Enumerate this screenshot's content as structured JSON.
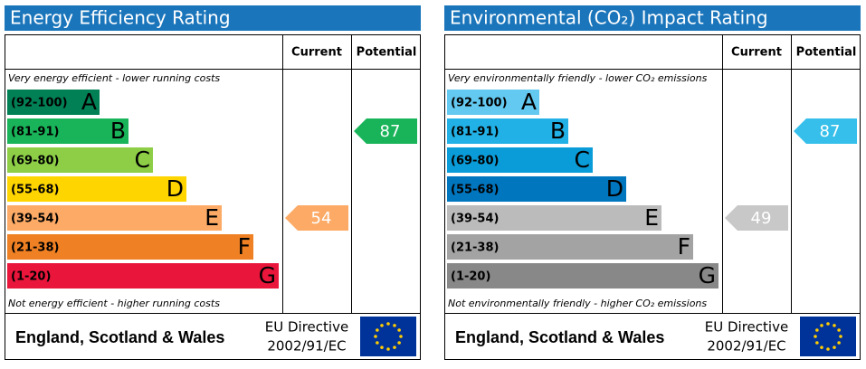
{
  "panels": [
    {
      "title": "Energy Efficiency Rating",
      "columns": [
        "Current",
        "Potential"
      ],
      "top_note": "Very energy efficient - lower running costs",
      "bottom_note": "Not energy efficient - higher running costs",
      "bands": [
        {
          "range": "(92-100)",
          "letter": "A",
          "color": "#008054"
        },
        {
          "range": "(81-91)",
          "letter": "B",
          "color": "#19b459"
        },
        {
          "range": "(69-80)",
          "letter": "C",
          "color": "#8dce46"
        },
        {
          "range": "(55-68)",
          "letter": "D",
          "color": "#ffd500"
        },
        {
          "range": "(39-54)",
          "letter": "E",
          "color": "#fcaa65"
        },
        {
          "range": "(21-38)",
          "letter": "F",
          "color": "#ef8023"
        },
        {
          "range": "(1-20)",
          "letter": "G",
          "color": "#e9153b"
        }
      ],
      "current": 54,
      "current_color": "#fcaa65",
      "potential": 87,
      "potential_color": "#19b459",
      "footer": "England, Scotland & Wales",
      "directive": [
        "EU Directive",
        "2002/91/EC"
      ]
    },
    {
      "title": "Environmental (CO₂) Impact Rating",
      "columns": [
        "Current",
        "Potential"
      ],
      "top_note": "Very environmentally friendly - lower CO₂ emissions",
      "bottom_note": "Not environmentally friendly - higher CO₂ emissions",
      "bands": [
        {
          "range": "(92-100)",
          "letter": "A",
          "color": "#63c9f0"
        },
        {
          "range": "(81-91)",
          "letter": "B",
          "color": "#22b1e6"
        },
        {
          "range": "(69-80)",
          "letter": "C",
          "color": "#0a9cd8"
        },
        {
          "range": "(55-68)",
          "letter": "D",
          "color": "#0076bf"
        },
        {
          "range": "(39-54)",
          "letter": "E",
          "color": "#bbbbbb"
        },
        {
          "range": "(21-38)",
          "letter": "F",
          "color": "#a3a3a3"
        },
        {
          "range": "(1-20)",
          "letter": "G",
          "color": "#888888"
        }
      ],
      "current": 49,
      "current_color": "#c8c8c8",
      "potential": 87,
      "potential_color": "#35bfea",
      "footer": "England, Scotland & Wales",
      "directive": [
        "EU Directive",
        "2002/91/EC"
      ]
    }
  ]
}
